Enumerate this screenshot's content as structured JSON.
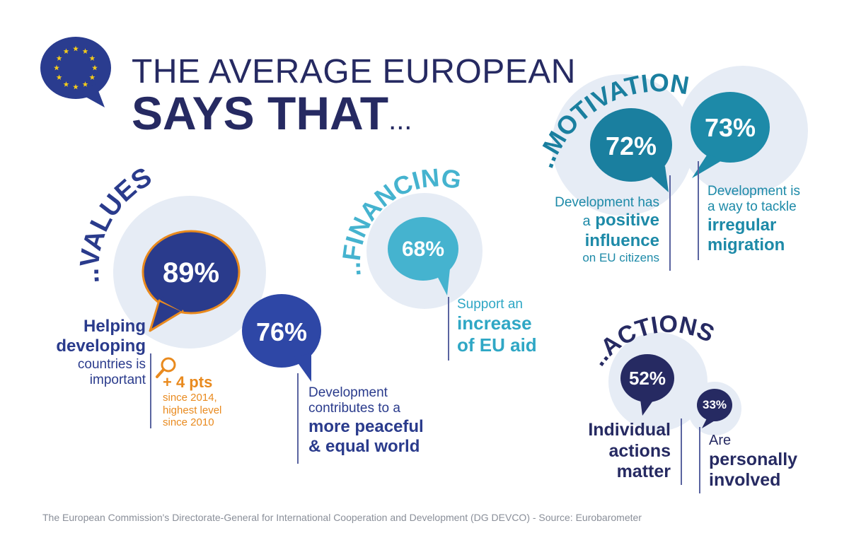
{
  "header": {
    "title_line1": "THE AVERAGE EUROPEAN",
    "title_line2": "SAYS THAT",
    "title_dots": "..."
  },
  "sections": {
    "values": "VALUES",
    "financing": "FINANCING",
    "motivation": "MOTIVATION",
    "actions": "ACTIONS",
    "prefix": ".."
  },
  "stats": {
    "values_main": {
      "percent": "89%",
      "lines": [
        "Helping",
        "developing",
        "countries is",
        "important"
      ]
    },
    "values_trend": {
      "headline": "+ 4 pts",
      "lines": [
        "since 2014,",
        "highest level",
        "since 2010"
      ]
    },
    "values_peace": {
      "percent": "76%",
      "lines": [
        "Development",
        "contributes to a",
        "more peaceful",
        "& equal world"
      ]
    },
    "financing": {
      "percent": "68%",
      "lines": [
        "Support an",
        "increase",
        "of EU aid"
      ]
    },
    "motivation_positive": {
      "percent": "72%",
      "lines": [
        "Development has",
        "a",
        "positive",
        "influence",
        "on EU citizens"
      ]
    },
    "motivation_migration": {
      "percent": "73%",
      "lines": [
        "Development is",
        "a way to tackle",
        "irregular",
        "migration"
      ]
    },
    "actions_matter": {
      "percent": "52%",
      "lines": [
        "Individual",
        "actions",
        "matter"
      ]
    },
    "actions_involved": {
      "percent": "33%",
      "lines": [
        "Are",
        "personally",
        "involved"
      ]
    }
  },
  "footer": "The European Commission's Directorate-General for International Cooperation and Development (DG DEVCO) - Source: Eurobarometer",
  "colors": {
    "navy": "#2a3b8c",
    "dark_navy": "#262a62",
    "teal": "#1d8aa8",
    "sky": "#45b3cf",
    "orange": "#e98a1e",
    "halo": "#e6ecf5",
    "eu_blue": "#2a3c8f",
    "eu_star": "#f5cc1a"
  },
  "icons": [
    "eu-flag-speech-bubble-icon",
    "magnifier-icon"
  ]
}
